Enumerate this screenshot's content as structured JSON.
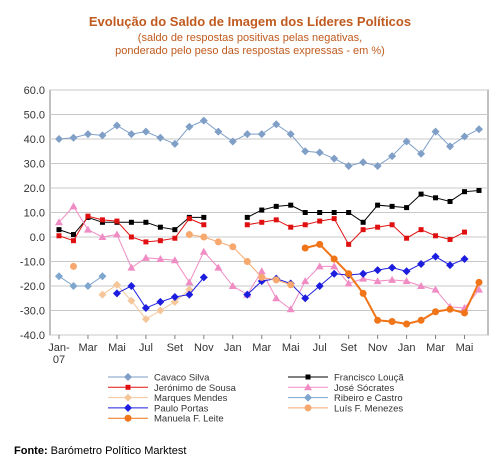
{
  "title": "Evolução do Saldo  de Imagem dos Líderes Políticos",
  "subtitle_line1": "(saldo de respostas positivas pelas negativas,",
  "subtitle_line2": "ponderado pelo peso das respostas expressas - em %)",
  "footer_label": "Fonte:",
  "footer_text": "Barómetro Político Marktest",
  "chart_data": {
    "type": "line",
    "x": [
      "2007-01",
      "2007-02",
      "2007-03",
      "2007-04",
      "2007-05",
      "2007-06",
      "2007-07",
      "2007-08",
      "2007-09",
      "2007-10",
      "2007-11",
      "2007-12",
      "2008-01",
      "2008-02",
      "2008-03",
      "2008-04",
      "2008-05",
      "2008-06",
      "2008-07",
      "2008-08",
      "2008-09",
      "2008-10",
      "2008-11",
      "2008-12",
      "2009-01",
      "2009-02",
      "2009-03",
      "2009-04",
      "2009-05",
      "2009-06"
    ],
    "x_tick_labels": [
      "Jan-\n07",
      "Mar",
      "Mai",
      "Jul",
      "Set",
      "Nov",
      "Jan",
      "Mar",
      "Mai",
      "Jul",
      "Set",
      "Nov",
      "Jan",
      "Mar",
      "Mai"
    ],
    "ylim": [
      -40,
      60
    ],
    "y_ticks": [
      "60.0",
      "50.0",
      "40.0",
      "30.0",
      "20.0",
      "10.0",
      "0.0",
      "-10.0",
      "-20.0",
      "-30.0",
      "-40.0"
    ],
    "grid": true,
    "legend_position": "bottom",
    "series": [
      {
        "name": "Cavaco Silva",
        "color": "#7f9fc7",
        "marker": "diamond",
        "values": [
          40,
          40.5,
          42,
          41.5,
          45.5,
          42,
          43,
          40.5,
          38,
          45,
          47.5,
          43,
          39,
          42,
          42,
          46,
          42,
          35,
          34.5,
          32,
          29,
          30.5,
          29,
          33,
          39,
          34,
          43,
          37,
          41,
          44
        ]
      },
      {
        "name": "Francisco Louçã",
        "color": "#000000",
        "marker": "square",
        "values": [
          3,
          1,
          8,
          6,
          6,
          6,
          6,
          4,
          3,
          8,
          8,
          null,
          null,
          8,
          11,
          12.5,
          13,
          10,
          10,
          10,
          10,
          6,
          13,
          12.5,
          12,
          17.5,
          16,
          14.5,
          18.5,
          19
        ]
      },
      {
        "name": "Jerónimo de Sousa",
        "color": "#e01010",
        "marker": "square",
        "values": [
          0.5,
          -1.5,
          8.5,
          7,
          6.5,
          0,
          -2,
          -1.5,
          -0.5,
          7.5,
          5,
          null,
          null,
          5,
          6,
          7,
          4,
          5,
          6.5,
          7.5,
          -3,
          3,
          4,
          5,
          -0.5,
          3,
          0.5,
          -1,
          2,
          null
        ]
      },
      {
        "name": "José Sócrates",
        "color": "#f08cc4",
        "marker": "triangle",
        "values": [
          6,
          12.5,
          3,
          0,
          1,
          -12.5,
          -8.5,
          -9,
          -9.5,
          -18.5,
          -6,
          -12.5,
          -20,
          -23.5,
          -14,
          -25,
          -29.5,
          -18,
          -12,
          -12,
          -19,
          -17,
          -18,
          -17.5,
          -18,
          -20,
          -21.5,
          -28.5,
          -29,
          -21.5
        ]
      },
      {
        "name": "Marques Mendes",
        "color": "#f5c69a",
        "marker": "diamond",
        "values": [
          null,
          null,
          null,
          -23.5,
          -19.5,
          -26,
          -33.5,
          -30,
          -26.5,
          -21.5,
          null,
          null,
          null,
          null,
          null,
          null,
          null,
          null,
          null,
          null,
          null,
          null,
          null,
          null,
          null,
          null,
          null,
          null,
          null,
          null
        ]
      },
      {
        "name": "Ribeiro e Castro",
        "color": "#7fa6cc",
        "marker": "diamond",
        "values": [
          -16,
          -20,
          -20,
          -16,
          null,
          null,
          null,
          null,
          null,
          null,
          null,
          null,
          null,
          null,
          null,
          null,
          null,
          null,
          null,
          null,
          null,
          null,
          null,
          null,
          null,
          null,
          null,
          null,
          null,
          null
        ]
      },
      {
        "name": "Paulo Portas",
        "color": "#1d1ddf",
        "marker": "diamond",
        "values": [
          null,
          null,
          null,
          null,
          -23,
          -20,
          -29,
          -26.5,
          -24.5,
          -23.5,
          -16.5,
          null,
          null,
          -23.5,
          -18,
          -17,
          -19,
          -25,
          -20,
          -15,
          -15.5,
          -15,
          -13.5,
          -12.5,
          -14,
          -11,
          -8,
          -11.5,
          -9,
          null
        ]
      },
      {
        "name": "Luís F. Menezes",
        "color": "#f7a86e",
        "marker": "circle",
        "values": [
          null,
          -12,
          null,
          null,
          null,
          null,
          null,
          null,
          null,
          1,
          0,
          -2,
          -4,
          -10,
          -16.5,
          -17.5,
          -19.5,
          null,
          null,
          null,
          null,
          null,
          null,
          null,
          null,
          null,
          null,
          null,
          null,
          null
        ]
      },
      {
        "name": "Manuela F. Leite",
        "color": "#f07418",
        "marker": "circle",
        "values": [
          null,
          null,
          null,
          null,
          null,
          null,
          null,
          null,
          null,
          null,
          null,
          null,
          null,
          null,
          null,
          null,
          null,
          -4.5,
          -3,
          -9,
          -15,
          -23,
          -34,
          -34.5,
          -35.5,
          -34,
          -30.5,
          -29.5,
          -31,
          -18.5
        ]
      }
    ]
  }
}
